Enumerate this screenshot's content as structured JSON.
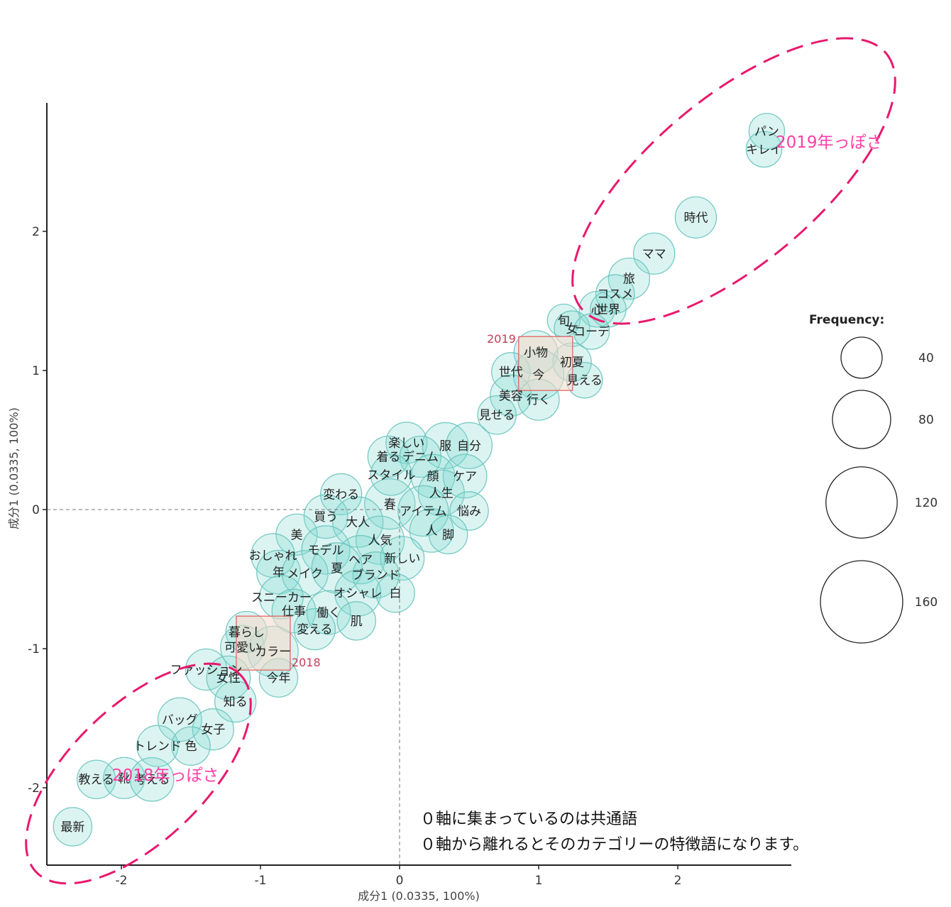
{
  "chart_data": {
    "type": "scatter",
    "xlabel": "成分1 (0.0335, 100%)",
    "ylabel": "成分1 (0.0335, 100%)",
    "xlim": [
      -2.55,
      2.85
    ],
    "ylim": [
      -2.55,
      2.9
    ],
    "xticks": [
      "-2",
      "-1",
      "0",
      "1",
      "2"
    ],
    "yticks": [
      "-2",
      "-1",
      "0",
      "1",
      "2"
    ],
    "bubble_color": "#7fd8d2",
    "words": [
      {
        "label": "パン",
        "x": 2.64,
        "y": 2.72,
        "freq": 30
      },
      {
        "label": "キレイ",
        "x": 2.62,
        "y": 2.59,
        "freq": 30
      },
      {
        "label": "時代",
        "x": 2.13,
        "y": 2.1,
        "freq": 40
      },
      {
        "label": "ママ",
        "x": 1.83,
        "y": 1.84,
        "freq": 40
      },
      {
        "label": "旅",
        "x": 1.65,
        "y": 1.66,
        "freq": 40
      },
      {
        "label": "コスメ",
        "x": 1.55,
        "y": 1.55,
        "freq": 35
      },
      {
        "label": "心",
        "x": 1.42,
        "y": 1.44,
        "freq": 30
      },
      {
        "label": "世界",
        "x": 1.5,
        "y": 1.44,
        "freq": 30
      },
      {
        "label": "旬",
        "x": 1.18,
        "y": 1.36,
        "freq": 25
      },
      {
        "label": "女",
        "x": 1.24,
        "y": 1.3,
        "freq": 30
      },
      {
        "label": "コーデ",
        "x": 1.38,
        "y": 1.28,
        "freq": 30
      },
      {
        "label": "小物",
        "x": 0.98,
        "y": 1.13,
        "freq": 45
      },
      {
        "label": "初夏",
        "x": 1.24,
        "y": 1.06,
        "freq": 35
      },
      {
        "label": "世代",
        "x": 0.8,
        "y": 0.99,
        "freq": 35
      },
      {
        "label": "今",
        "x": 1.0,
        "y": 0.97,
        "freq": 60
      },
      {
        "label": "見える",
        "x": 1.33,
        "y": 0.93,
        "freq": 30
      },
      {
        "label": "美容",
        "x": 0.8,
        "y": 0.82,
        "freq": 40
      },
      {
        "label": "行く",
        "x": 1.0,
        "y": 0.79,
        "freq": 40
      },
      {
        "label": "見せる",
        "x": 0.7,
        "y": 0.68,
        "freq": 35
      },
      {
        "label": "楽しい",
        "x": 0.05,
        "y": 0.48,
        "freq": 40
      },
      {
        "label": "服",
        "x": 0.33,
        "y": 0.46,
        "freq": 50
      },
      {
        "label": "自分",
        "x": 0.5,
        "y": 0.46,
        "freq": 50
      },
      {
        "label": "着る",
        "x": -0.08,
        "y": 0.38,
        "freq": 40
      },
      {
        "label": "デニム",
        "x": 0.15,
        "y": 0.38,
        "freq": 40
      },
      {
        "label": "スタイル",
        "x": -0.06,
        "y": 0.25,
        "freq": 40
      },
      {
        "label": "顔",
        "x": 0.24,
        "y": 0.24,
        "freq": 45
      },
      {
        "label": "ケア",
        "x": 0.47,
        "y": 0.24,
        "freq": 45
      },
      {
        "label": "変わる",
        "x": -0.42,
        "y": 0.11,
        "freq": 40
      },
      {
        "label": "人生",
        "x": 0.3,
        "y": 0.12,
        "freq": 50
      },
      {
        "label": "春",
        "x": -0.07,
        "y": 0.04,
        "freq": 60
      },
      {
        "label": "アイテム",
        "x": 0.17,
        "y": -0.01,
        "freq": 60
      },
      {
        "label": "悩み",
        "x": 0.5,
        "y": -0.01,
        "freq": 35
      },
      {
        "label": "買う",
        "x": -0.53,
        "y": -0.05,
        "freq": 45
      },
      {
        "label": "大人",
        "x": -0.3,
        "y": -0.09,
        "freq": 60
      },
      {
        "label": "人",
        "x": 0.23,
        "y": -0.15,
        "freq": 45
      },
      {
        "label": "脚",
        "x": 0.35,
        "y": -0.18,
        "freq": 35
      },
      {
        "label": "美",
        "x": -0.74,
        "y": -0.18,
        "freq": 40
      },
      {
        "label": "人気",
        "x": -0.14,
        "y": -0.22,
        "freq": 55
      },
      {
        "label": "おしゃれ",
        "x": -0.91,
        "y": -0.33,
        "freq": 45
      },
      {
        "label": "モデル",
        "x": -0.53,
        "y": -0.29,
        "freq": 55
      },
      {
        "label": "ヘア",
        "x": -0.28,
        "y": -0.36,
        "freq": 55
      },
      {
        "label": "新しい",
        "x": 0.02,
        "y": -0.35,
        "freq": 45
      },
      {
        "label": "年",
        "x": -0.87,
        "y": -0.45,
        "freq": 45
      },
      {
        "label": "メイク",
        "x": -0.68,
        "y": -0.46,
        "freq": 50
      },
      {
        "label": "夏",
        "x": -0.45,
        "y": -0.42,
        "freq": 60
      },
      {
        "label": "ブランド",
        "x": -0.17,
        "y": -0.47,
        "freq": 50
      },
      {
        "label": "スニーカー",
        "x": -0.85,
        "y": -0.63,
        "freq": 45
      },
      {
        "label": "オシャレ",
        "x": -0.3,
        "y": -0.6,
        "freq": 50
      },
      {
        "label": "白",
        "x": -0.03,
        "y": -0.6,
        "freq": 35
      },
      {
        "label": "仕事",
        "x": -0.76,
        "y": -0.73,
        "freq": 45
      },
      {
        "label": "働く",
        "x": -0.51,
        "y": -0.74,
        "freq": 45
      },
      {
        "label": "肌",
        "x": -0.31,
        "y": -0.8,
        "freq": 35
      },
      {
        "label": "暮らし",
        "x": -1.1,
        "y": -0.88,
        "freq": 40
      },
      {
        "label": "変える",
        "x": -0.61,
        "y": -0.86,
        "freq": 40
      },
      {
        "label": "可愛い",
        "x": -1.13,
        "y": -0.99,
        "freq": 45
      },
      {
        "label": "カラー",
        "x": -0.91,
        "y": -1.02,
        "freq": 60
      },
      {
        "label": "ファッション",
        "x": -1.39,
        "y": -1.15,
        "freq": 40
      },
      {
        "label": "女性",
        "x": -1.23,
        "y": -1.21,
        "freq": 45
      },
      {
        "label": "今年",
        "x": -0.87,
        "y": -1.21,
        "freq": 35
      },
      {
        "label": "知る",
        "x": -1.18,
        "y": -1.38,
        "freq": 40
      },
      {
        "label": "バッグ",
        "x": -1.58,
        "y": -1.51,
        "freq": 45
      },
      {
        "label": "女子",
        "x": -1.34,
        "y": -1.58,
        "freq": 40
      },
      {
        "label": "トレンド",
        "x": -1.74,
        "y": -1.7,
        "freq": 40
      },
      {
        "label": "色",
        "x": -1.5,
        "y": -1.7,
        "freq": 35
      },
      {
        "label": "教える",
        "x": -2.18,
        "y": -1.94,
        "freq": 35
      },
      {
        "label": "靴",
        "x": -1.98,
        "y": -1.93,
        "freq": 40
      },
      {
        "label": "考える",
        "x": -1.78,
        "y": -1.94,
        "freq": 45
      },
      {
        "label": "最新",
        "x": -2.35,
        "y": -2.28,
        "freq": 35
      }
    ],
    "categories": [
      {
        "label": "2019",
        "x": 1.05,
        "y": 1.05
      },
      {
        "label": "2018",
        "x": -0.98,
        "y": -0.96
      }
    ],
    "legend": {
      "title": "Frequency:",
      "position": "right",
      "sizes": [
        40,
        80,
        120,
        160
      ]
    },
    "annotations": [
      {
        "label": "2019年っぽさ",
        "color": "#ff3fa6"
      },
      {
        "label": "2018年っぽさ",
        "color": "#ff3fa6"
      }
    ],
    "notes": [
      "０軸に集まっているのは共通語",
      "０軸から離れるとそのカテゴリーの特徴語になります。"
    ]
  }
}
